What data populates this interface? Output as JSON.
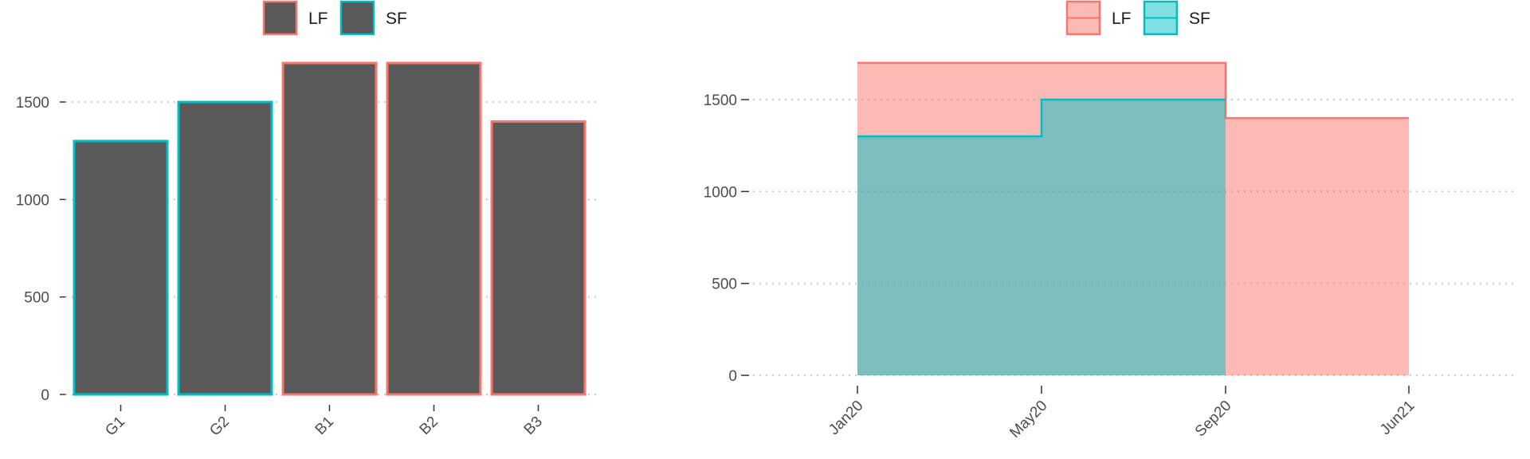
{
  "colors": {
    "LF": "#F8766D",
    "SF": "#00BFC4",
    "bar_fill": "#595959",
    "grid": "#c8c8c8",
    "axis_text": "#4d4d4d"
  },
  "chart_data": [
    {
      "type": "bar",
      "categories": [
        "G1",
        "G2",
        "B1",
        "B2",
        "B3"
      ],
      "values": [
        1300,
        1500,
        1700,
        1700,
        1400
      ],
      "outline_group": [
        "SF",
        "SF",
        "LF",
        "LF",
        "LF"
      ],
      "legend": [
        "LF",
        "SF"
      ],
      "legend_position": "top",
      "yticks": [
        0,
        500,
        1000,
        1500
      ],
      "ylim": [
        0,
        1700
      ],
      "grid": "horizontal dotted",
      "title": "",
      "xlabel": "",
      "ylabel": ""
    },
    {
      "type": "area",
      "step": true,
      "x_ticks": [
        "Jan20",
        "May20",
        "Sep20",
        "Jun21"
      ],
      "series": [
        {
          "name": "LF",
          "x": [
            "Jan20",
            "Sep20",
            "Sep20",
            "Jun21"
          ],
          "y": [
            1700,
            1700,
            1400,
            1400
          ]
        },
        {
          "name": "SF",
          "x": [
            "Jan20",
            "May20",
            "May20",
            "Sep20"
          ],
          "y": [
            1300,
            1300,
            1500,
            1500
          ]
        }
      ],
      "legend": [
        "LF",
        "SF"
      ],
      "legend_position": "top",
      "yticks": [
        0,
        500,
        1000,
        1500
      ],
      "ylim": [
        0,
        1700
      ],
      "grid": "horizontal dotted",
      "title": "",
      "xlabel": "",
      "ylabel": ""
    }
  ]
}
